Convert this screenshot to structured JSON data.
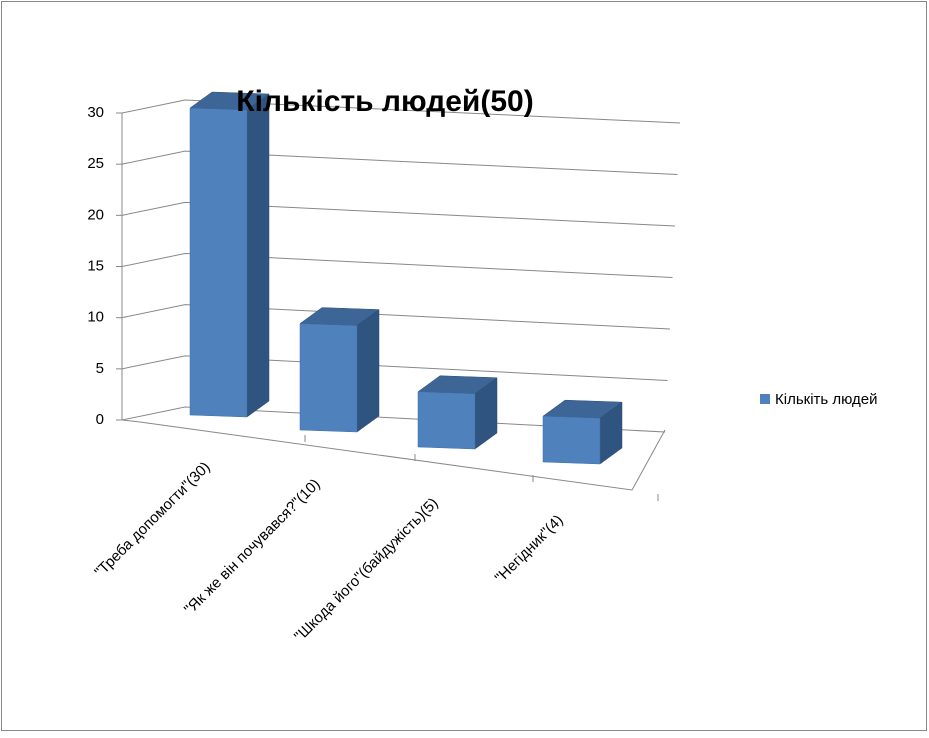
{
  "chart_data": {
    "type": "bar3d",
    "title": "Кількість людей(50)",
    "categories": [
      "\"Треба допомогти\"(30)",
      "\"Як же він почувався?\"(10)",
      "\"Шкода його\"(байдужість)(5)",
      "\"Негідник\"(4)"
    ],
    "series": [
      {
        "name": "Кількіть людей",
        "color": "#4f81bd",
        "values": [
          30,
          10,
          5,
          4
        ]
      }
    ],
    "ylim": [
      0,
      30
    ],
    "yticks": [
      0,
      5,
      10,
      15,
      20,
      25,
      30
    ],
    "grid": true,
    "legend": "right"
  }
}
